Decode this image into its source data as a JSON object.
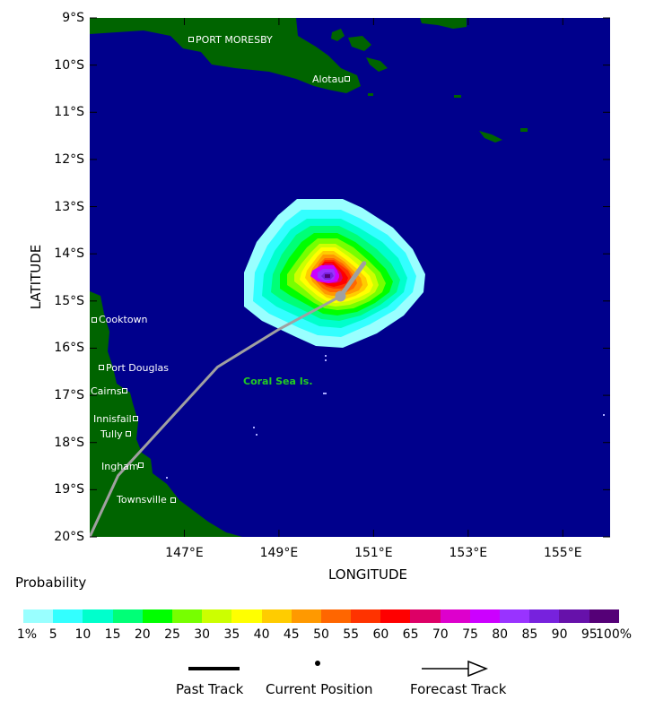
{
  "map": {
    "x_axis_title": "LONGITUDE",
    "y_axis_title": "LATITUDE",
    "lat_labels": [
      "9°S",
      "10°S",
      "11°S",
      "12°S",
      "13°S",
      "14°S",
      "15°S",
      "16°S",
      "17°S",
      "18°S",
      "19°S",
      "20°S"
    ],
    "lon_labels": [
      "147°E",
      "149°E",
      "151°E",
      "153°E",
      "155°E"
    ],
    "places": [
      {
        "name": "PORT MORESBY"
      },
      {
        "name": "Alotau"
      },
      {
        "name": "Cooktown"
      },
      {
        "name": "Port Douglas"
      },
      {
        "name": "Cairns"
      },
      {
        "name": "Innisfail"
      },
      {
        "name": "Tully"
      },
      {
        "name": "Ingham"
      },
      {
        "name": "Townsville"
      }
    ],
    "region_label": "Coral Sea Is.",
    "colors": {
      "ocean": "#00008c",
      "land": "#006400",
      "track": "#a0a0a0"
    }
  },
  "track": {
    "past": [
      [
        145.0,
        -20.0
      ],
      [
        145.6,
        -18.7
      ],
      [
        147.7,
        -16.4
      ],
      [
        149.0,
        -15.6
      ],
      [
        150.3,
        -14.9
      ]
    ],
    "current_position": [
      150.3,
      -14.9
    ],
    "forecast": [
      [
        150.3,
        -14.9
      ],
      [
        150.8,
        -14.2
      ]
    ]
  },
  "probability": {
    "title": "Probability",
    "labels": [
      "1%",
      "5",
      "10",
      "15",
      "20",
      "25",
      "30",
      "35",
      "40",
      "45",
      "50",
      "55",
      "60",
      "65",
      "70",
      "75",
      "80",
      "85",
      "90",
      "95",
      "100%"
    ],
    "colors": [
      "#99ffff",
      "#33ffff",
      "#00ffcc",
      "#00ff77",
      "#00ff00",
      "#77ff00",
      "#ccff00",
      "#ffff00",
      "#ffcc00",
      "#ff9900",
      "#ff6600",
      "#ff3300",
      "#ff0000",
      "#dd0066",
      "#dd00cc",
      "#cc00ff",
      "#9933ff",
      "#7722dd",
      "#6611aa",
      "#550077"
    ]
  },
  "legend": {
    "past_track": "Past Track",
    "current_position": "Current Position",
    "forecast_track": "Forecast Track"
  }
}
